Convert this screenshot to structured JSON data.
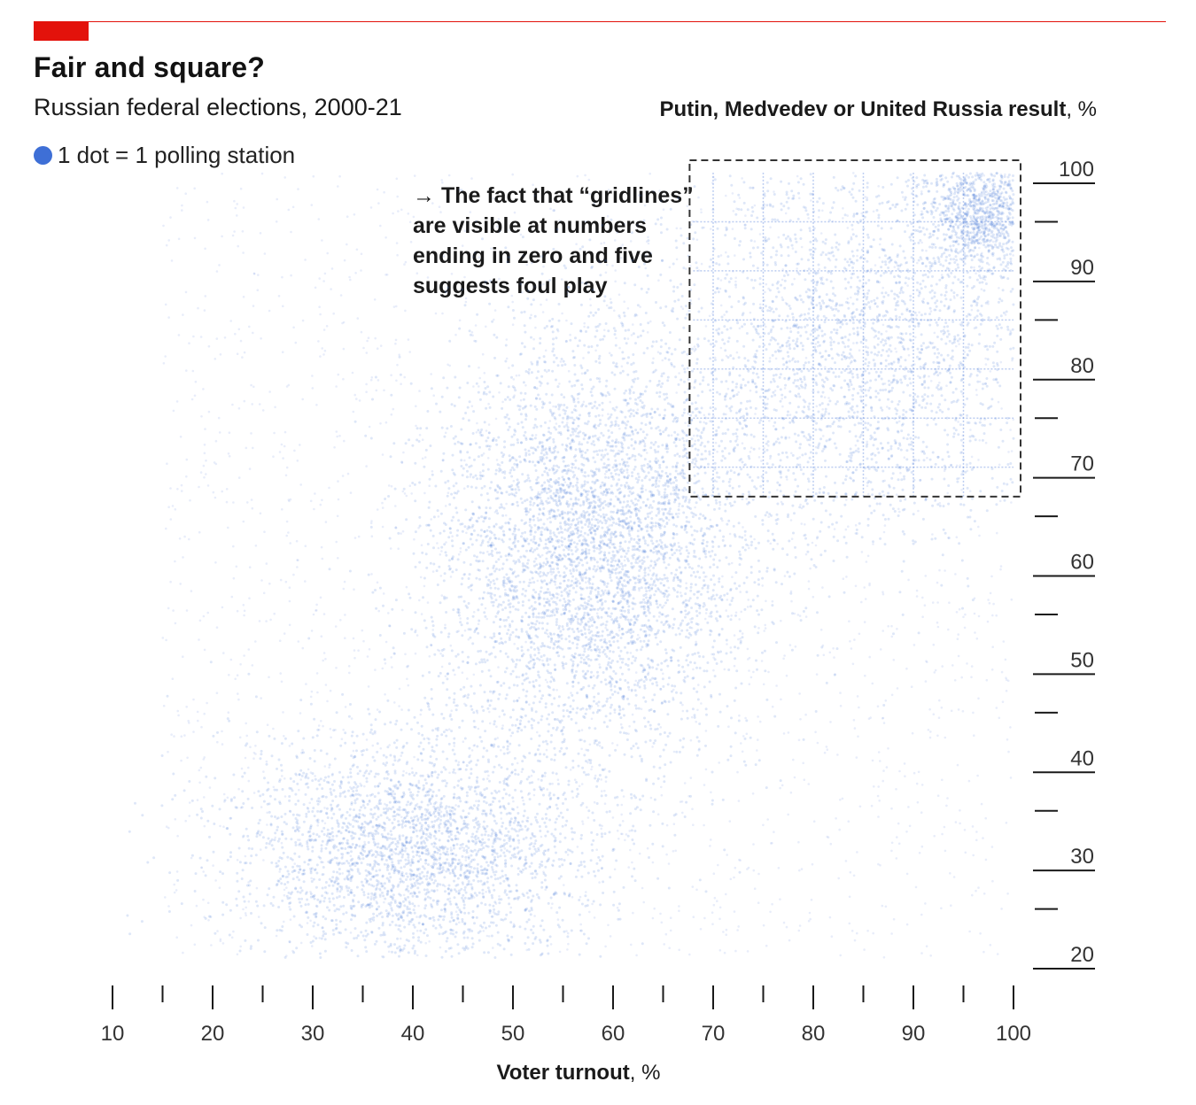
{
  "header": {
    "title": "Fair and square?",
    "subtitle": "Russian federal elections, 2000-21",
    "legend_label": "1 dot = 1 polling station",
    "accent_color": "#e3120b",
    "dot_color": "#3e6fd6"
  },
  "annotation": {
    "arrow": "→",
    "text": "The fact that “gridlines” are visible at numbers ending in zero and five suggests foul play",
    "highlight_region": {
      "x_range": [
        68,
        100
      ],
      "y_range": [
        67,
        100
      ]
    }
  },
  "chart_data": {
    "type": "scatter",
    "title": "Fair and square?",
    "subtitle": "Russian federal elections, 2000-21",
    "xlabel": "Voter turnout",
    "xlabel_unit": ", %",
    "ylabel": "Putin, Medvedev or United Russia result",
    "ylabel_unit": ", %",
    "xlim": [
      10,
      100
    ],
    "ylim": [
      20,
      100
    ],
    "x_ticks": [
      10,
      20,
      30,
      40,
      50,
      60,
      70,
      80,
      90,
      100
    ],
    "y_ticks": [
      20,
      30,
      40,
      50,
      60,
      70,
      80,
      90,
      100
    ],
    "x_tick_labels": [
      "10",
      "20",
      "30",
      "40",
      "50",
      "60",
      "70",
      "80",
      "90",
      "100"
    ],
    "y_tick_labels": [
      "20",
      "30",
      "40",
      "50",
      "60",
      "70",
      "80",
      "90",
      "100"
    ],
    "grid": false,
    "legend": "top-left",
    "density_clusters": [
      {
        "x_center": 40,
        "y_center": 31,
        "x_spread": 9,
        "y_spread": 6,
        "weight": 0.26
      },
      {
        "x_center": 58,
        "y_center": 62,
        "x_spread": 8,
        "y_spread": 11,
        "weight": 0.42
      },
      {
        "x_center": 85,
        "y_center": 82,
        "x_spread": 10,
        "y_spread": 10,
        "weight": 0.22
      },
      {
        "x_center": 97,
        "y_center": 96,
        "x_spread": 3,
        "y_spread": 3,
        "weight": 0.1
      }
    ],
    "gridline_values": [
      70,
      75,
      80,
      85,
      90,
      95
    ]
  }
}
